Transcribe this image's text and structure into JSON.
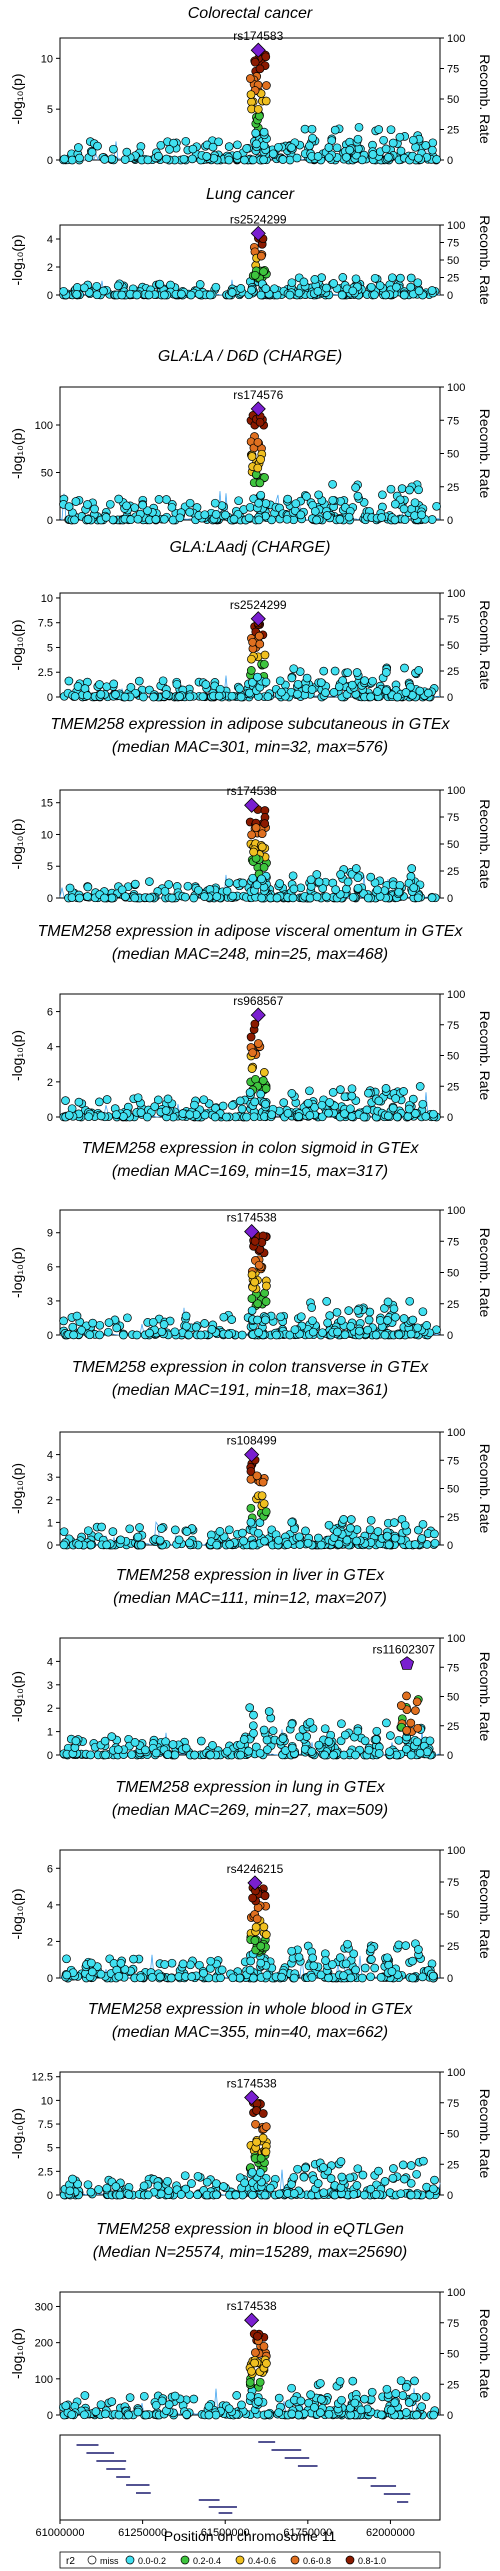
{
  "y_axis_label": "-log₁₀(p)",
  "y2_axis_label": "Recomb. Rate",
  "x_axis_label": "Position on chromosome 11",
  "x_ticks": [
    61000000,
    61250000,
    61500000,
    61750000,
    62000000
  ],
  "x_range": [
    61000000,
    62150000
  ],
  "rate_ticks": [
    0,
    25,
    50,
    75,
    100
  ],
  "legend": {
    "title": "r2",
    "items": [
      {
        "label": "miss",
        "color": "#ffffff"
      },
      {
        "label": "0.0-0.2",
        "color": "#40e0f0"
      },
      {
        "label": "0.2-0.4",
        "color": "#3ec43e"
      },
      {
        "label": "0.4-0.6",
        "color": "#f0c020"
      },
      {
        "label": "0.6-0.8",
        "color": "#e07020"
      },
      {
        "label": "0.8-1.0",
        "color": "#8b1a00"
      }
    ],
    "lead_color": "#7a1fd0",
    "recomb_color": "#4aa8f0"
  },
  "chart_data": [
    {
      "type": "scatter",
      "title_lines": [
        "Colorectal cancer"
      ],
      "ylim": [
        0,
        12
      ],
      "yticks": [
        0,
        5,
        10
      ],
      "lead_snp": "rs174583",
      "lead": {
        "x": 61600000,
        "y": 10.8
      },
      "lead_shape": "diamond",
      "cluster": "big"
    },
    {
      "type": "scatter",
      "title_lines": [
        "Lung cancer"
      ],
      "ylim": [
        0,
        5
      ],
      "yticks": [
        0,
        2,
        4
      ],
      "lead_snp": "rs2524299",
      "lead": {
        "x": 61600000,
        "y": 4.4
      },
      "lead_shape": "diamond",
      "cluster": "small"
    },
    {
      "type": "scatter",
      "title_lines": [
        "GLA:LA / D6D (CHARGE)"
      ],
      "ylim": [
        0,
        140
      ],
      "yticks": [
        0,
        50,
        100
      ],
      "lead_snp": "rs174576",
      "lead": {
        "x": 61600000,
        "y": 117
      },
      "lead_shape": "diamond",
      "cluster": "big"
    },
    {
      "type": "scatter",
      "title_lines": [
        "GLA:LAadj (CHARGE)"
      ],
      "ylim": [
        0,
        10.5
      ],
      "yticks": [
        0,
        2.5,
        5,
        7.5,
        10
      ],
      "lead_snp": "rs2524299",
      "lead": {
        "x": 61600000,
        "y": 7.9
      },
      "lead_shape": "diamond",
      "cluster": "small"
    },
    {
      "type": "scatter",
      "title_lines": [
        "TMEM258 expression in adipose subcutaneous in GTEx",
        "(median MAC=301, min=32, max=576)"
      ],
      "ylim": [
        0,
        17
      ],
      "yticks": [
        0,
        5,
        10,
        15
      ],
      "lead_snp": "rs174538",
      "lead": {
        "x": 61580000,
        "y": 14.6
      },
      "lead_shape": "diamond",
      "cluster": "big"
    },
    {
      "type": "scatter",
      "title_lines": [
        "TMEM258 expression in adipose visceral omentum in GTEx",
        "(median MAC=248, min=25, max=468)"
      ],
      "ylim": [
        0,
        7
      ],
      "yticks": [
        0,
        2,
        4,
        6
      ],
      "lead_snp": "rs968567",
      "lead": {
        "x": 61600000,
        "y": 5.8
      },
      "lead_shape": "diamond",
      "cluster": "mid"
    },
    {
      "type": "scatter",
      "title_lines": [
        "TMEM258 expression in colon sigmoid in GTEx",
        "(median MAC=169, min=15, max=317)"
      ],
      "ylim": [
        0,
        11
      ],
      "yticks": [
        0,
        3,
        6,
        9
      ],
      "lead_snp": "rs174538",
      "lead": {
        "x": 61580000,
        "y": 9.1
      },
      "lead_shape": "diamond",
      "cluster": "big"
    },
    {
      "type": "scatter",
      "title_lines": [
        "TMEM258 expression in colon transverse in GTEx",
        "(median MAC=191, min=18, max=361)"
      ],
      "ylim": [
        0,
        5
      ],
      "yticks": [
        0,
        1,
        2,
        3,
        4
      ],
      "lead_snp": "rs108499",
      "lead": {
        "x": 61580000,
        "y": 4.0
      },
      "lead_shape": "diamond",
      "cluster": "mid"
    },
    {
      "type": "scatter",
      "title_lines": [
        "TMEM258 expression in liver in GTEx",
        "(median MAC=111, min=12, max=207)"
      ],
      "ylim": [
        0,
        5
      ],
      "yticks": [
        0,
        1,
        2,
        3,
        4
      ],
      "lead_snp": "rs11602307",
      "lead": {
        "x": 62050000,
        "y": 3.9
      },
      "lead_shape": "pentagon",
      "cluster": "liver"
    },
    {
      "type": "scatter",
      "title_lines": [
        "TMEM258 expression in lung in GTEx",
        "(median MAC=269, min=27, max=509)"
      ],
      "ylim": [
        0,
        7
      ],
      "yticks": [
        0,
        2,
        4,
        6
      ],
      "lead_snp": "rs4246215",
      "lead": {
        "x": 61590000,
        "y": 5.2
      },
      "lead_shape": "diamond",
      "cluster": "big"
    },
    {
      "type": "scatter",
      "title_lines": [
        "TMEM258 expression in whole blood in GTEx",
        "(median MAC=355, min=40, max=662)"
      ],
      "ylim": [
        0,
        13
      ],
      "yticks": [
        0,
        2.5,
        5,
        7.5,
        10,
        12.5
      ],
      "lead_snp": "rs174538",
      "lead": {
        "x": 61580000,
        "y": 10.3
      },
      "lead_shape": "diamond",
      "cluster": "big"
    },
    {
      "type": "scatter",
      "title_lines": [
        "TMEM258 expression in blood in eQTLGen",
        "(Median N=25574, min=15289, max=25690)"
      ],
      "ylim": [
        0,
        340
      ],
      "yticks": [
        0,
        100,
        200,
        300
      ],
      "lead_snp": "rs174538",
      "lead": {
        "x": 61580000,
        "y": 262
      },
      "lead_shape": "diamond",
      "cluster": "big"
    }
  ]
}
